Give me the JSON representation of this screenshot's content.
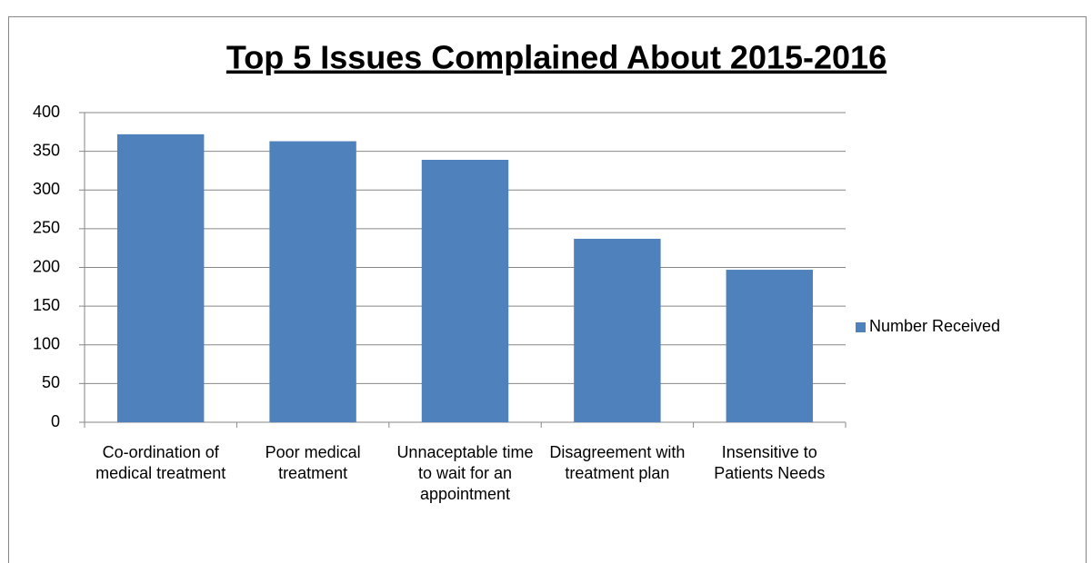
{
  "chart_data": {
    "type": "bar",
    "title": "Top 5 Issues Complained About 2015-2016",
    "categories": [
      "Co-ordination of medical treatment",
      "Poor medical treatment",
      "Unnaceptable time to wait for an appointment",
      "Disagreement with treatment plan",
      "Insensitive to Patients Needs"
    ],
    "series": [
      {
        "name": "Number Received",
        "color": "#4f81bd",
        "values": [
          372,
          363,
          339,
          237,
          197
        ]
      }
    ],
    "ylim": [
      0,
      400
    ],
    "yticks": [
      0,
      50,
      100,
      150,
      200,
      250,
      300,
      350,
      400
    ],
    "grid": true,
    "legend": "right"
  }
}
